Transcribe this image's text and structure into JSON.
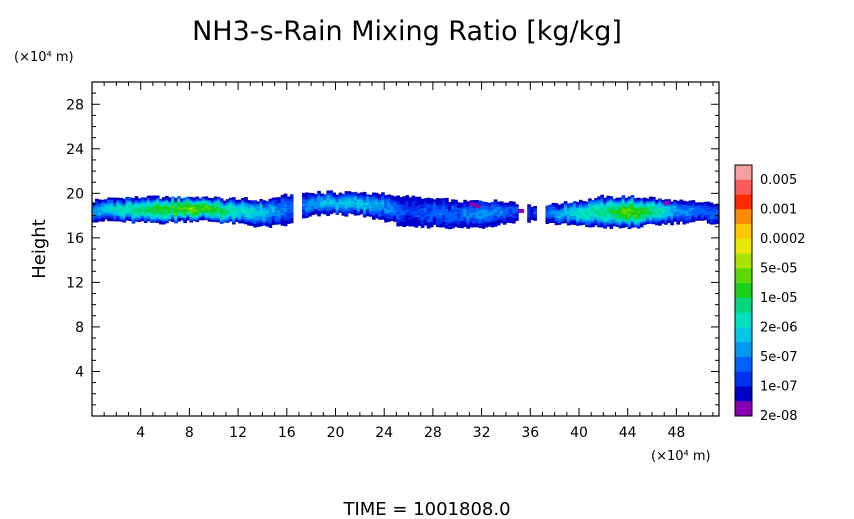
{
  "chart_data": {
    "type": "heatmap",
    "title": "NH3-s-Rain Mixing Ratio [kg/kg]",
    "xlabel": "",
    "ylabel": "Height",
    "x_unit": "(×10⁴ m)",
    "y_unit": "(×10⁴ m)",
    "xlim": [
      0,
      51.5
    ],
    "ylim": [
      0,
      30
    ],
    "x_ticks": [
      "4",
      "8",
      "12",
      "16",
      "20",
      "24",
      "28",
      "32",
      "36",
      "40",
      "44",
      "48"
    ],
    "y_ticks": [
      "4",
      "8",
      "12",
      "16",
      "20",
      "24",
      "28"
    ],
    "footer": "TIME = 1001808.0",
    "colorbar": {
      "labels": [
        "0.005",
        "0.001",
        "0.0002",
        "5e-05",
        "1e-05",
        "2e-06",
        "5e-07",
        "1e-07",
        "2e-08"
      ],
      "colors": [
        "#f5a0a0",
        "#ff5a5a",
        "#ff2a00",
        "#ff8c00",
        "#ffc800",
        "#e8e800",
        "#a8e400",
        "#5ad800",
        "#18d018",
        "#00d880",
        "#00e0c0",
        "#00c8e8",
        "#0098f0",
        "#0060ff",
        "#0030f0",
        "#0000c8",
        "#8800b0"
      ]
    },
    "field_layer": {
      "y_range": [
        16.8,
        20.2
      ],
      "level_scale": "0=none .. 9=highest (colorbar index from bottom)",
      "x": [
        0,
        2,
        4,
        6,
        8,
        10,
        12,
        14,
        16,
        18,
        20,
        22,
        24,
        26,
        28,
        30,
        32,
        34,
        36,
        38,
        40,
        42,
        44,
        46,
        48,
        50,
        51.5
      ],
      "top": [
        19.3,
        19.5,
        19.6,
        19.6,
        19.6,
        19.5,
        19.4,
        19.3,
        19.8,
        20.0,
        20.0,
        20.0,
        19.8,
        19.6,
        19.4,
        19.2,
        19.3,
        19.2,
        18.8,
        19.0,
        19.3,
        19.6,
        19.6,
        19.5,
        19.2,
        19.1,
        19.0
      ],
      "bottom": [
        17.6,
        17.5,
        17.4,
        17.4,
        17.6,
        17.5,
        17.3,
        17.0,
        17.2,
        18.0,
        18.2,
        18.0,
        17.6,
        16.9,
        17.1,
        16.9,
        17.0,
        17.4,
        17.6,
        17.3,
        17.1,
        17.0,
        16.9,
        17.2,
        17.4,
        17.5,
        17.3
      ],
      "peak": [
        4,
        6,
        7,
        8,
        9,
        8,
        6,
        5,
        3,
        4,
        5,
        5,
        4,
        2,
        3,
        3,
        4,
        3,
        2,
        4,
        6,
        7,
        9,
        7,
        4,
        3,
        3
      ]
    }
  }
}
